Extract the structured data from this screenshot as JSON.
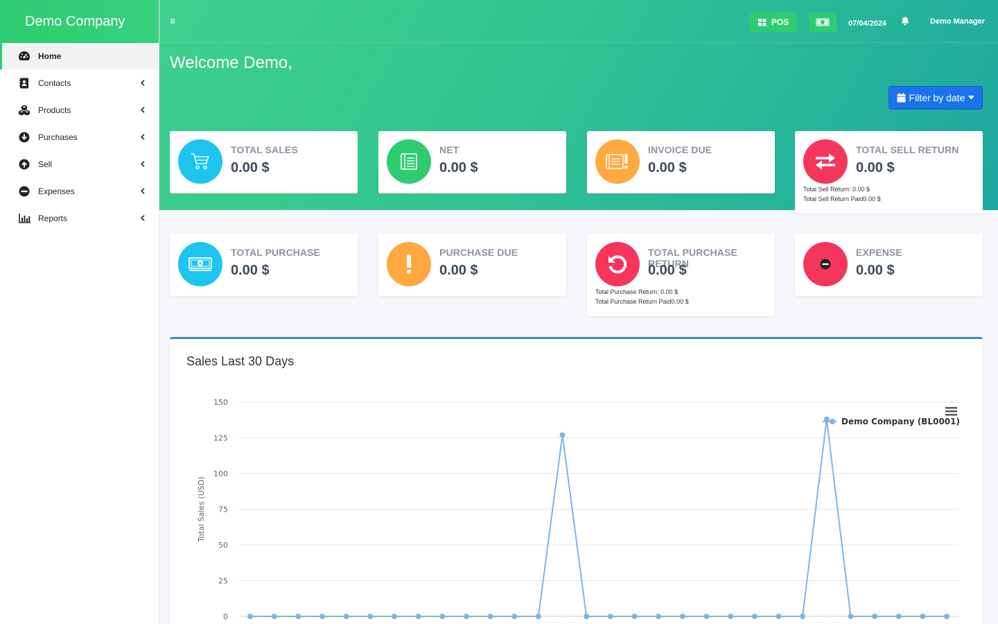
{
  "brand": "Demo Company",
  "nav": [
    {
      "label": "Home",
      "icon": "dashboard-icon",
      "active": true
    },
    {
      "label": "Contacts",
      "icon": "contacts-icon"
    },
    {
      "label": "Products",
      "icon": "cubes-icon"
    },
    {
      "label": "Purchases",
      "icon": "arrow-circle-down-icon"
    },
    {
      "label": "Sell",
      "icon": "arrow-circle-up-icon"
    },
    {
      "label": "Expenses",
      "icon": "minus-circle-icon"
    },
    {
      "label": "Reports",
      "icon": "bar-chart-icon"
    }
  ],
  "topbar": {
    "pos_label": "POS",
    "date": "07/04/2024",
    "user": "Demo Manager"
  },
  "welcome": "Welcome Demo,",
  "filter_label": "Filter by date",
  "cards": [
    {
      "label": "TOTAL SALES",
      "value": "0.00 $",
      "color": "#1bc5f0",
      "icon": "cart-icon"
    },
    {
      "label": "NET",
      "value": "0.00 $",
      "color": "#2ecc71",
      "icon": "ledger-icon"
    },
    {
      "label": "INVOICE DUE",
      "value": "0.00 $",
      "color": "#ffa940",
      "icon": "invoice-alert-icon"
    },
    {
      "label": "TOTAL SELL RETURN",
      "value": "0.00 $",
      "color": "#f5365c",
      "icon": "exchange-icon",
      "notes": [
        "Total Sell Return: 0.00 $",
        "Total Sell Return Paid0.00 $"
      ]
    },
    {
      "label": "TOTAL PURCHASE",
      "value": "0.00 $",
      "color": "#1bc5f0",
      "icon": "money-icon"
    },
    {
      "label": "PURCHASE DUE",
      "value": "0.00 $",
      "color": "#ffa940",
      "icon": "exclamation-icon"
    },
    {
      "label": "TOTAL PURCHASE RETURN",
      "value": "0.00 $",
      "color": "#f5365c",
      "icon": "undo-icon",
      "notes": [
        "Total Purchase Return: 0.00 $",
        "Total Purchase Return Paid0.00 $"
      ]
    },
    {
      "label": "EXPENSE",
      "value": "0.00 $",
      "color": "#f5365c",
      "icon": "minus-circle-icon"
    }
  ],
  "chart_data": {
    "type": "line",
    "title": "Sales Last 30 Days",
    "ylabel": "Total Sales (USD)",
    "ylim": [
      0,
      150
    ],
    "yticks": [
      0,
      25,
      50,
      75,
      100,
      125,
      150
    ],
    "series": [
      {
        "name": "Demo Company (BL0001)",
        "values": [
          0,
          0,
          0,
          0,
          0,
          0,
          0,
          0,
          0,
          0,
          0,
          0,
          0,
          127,
          0,
          0,
          0,
          0,
          0,
          0,
          0,
          0,
          0,
          0,
          138,
          0,
          0,
          0,
          0,
          0
        ]
      }
    ],
    "color": "#7cb5ec",
    "legend": "top-right"
  }
}
